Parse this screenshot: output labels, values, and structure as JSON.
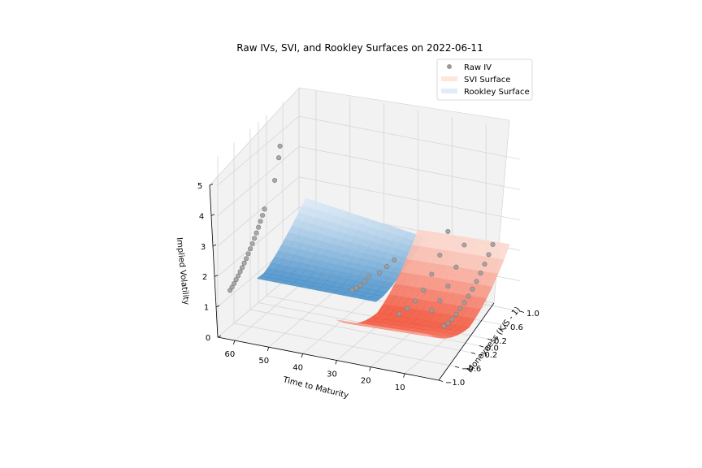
{
  "chart_data": {
    "type": "scatter",
    "title": "Raw IVs, SVI, and Rookley Surfaces on 2022-06-11",
    "xlabel": "Time to Maturity",
    "ylabel": "Moneyness (K/S - 1)",
    "zlabel": "Implied Volatility",
    "xlim": [
      0,
      65
    ],
    "ylim": [
      -1.0,
      1.0
    ],
    "zlim": [
      0,
      5
    ],
    "x_ticks": [
      "10",
      "20",
      "30",
      "40",
      "50",
      "60"
    ],
    "y_ticks": [
      "−1.0",
      "−0.6",
      "−0.2",
      "0.0",
      "0.2",
      "0.6",
      "1.0"
    ],
    "z_ticks": [
      "0",
      "1",
      "2",
      "3",
      "4",
      "5"
    ],
    "grid": true,
    "legend_position": "top-right",
    "legend": [
      "Raw IV",
      "SVI Surface",
      "Rookley Surface"
    ],
    "colors": {
      "raw_iv": "#808080",
      "svi_light": "#fde6dd",
      "svi_dark": "#f2553c",
      "rookley_light": "#e6f0fa",
      "rookley_dark": "#3c89c6",
      "pane": "#f2f2f2",
      "grid": "#d6d6d6"
    },
    "series": [
      {
        "name": "Raw IV",
        "kind": "scatter",
        "points": [
          [
            62,
            -0.95,
            1.55
          ],
          [
            62,
            -0.9,
            1.6
          ],
          [
            62,
            -0.85,
            1.66
          ],
          [
            62,
            -0.8,
            1.73
          ],
          [
            62,
            -0.75,
            1.8
          ],
          [
            62,
            -0.7,
            1.88
          ],
          [
            62,
            -0.65,
            1.96
          ],
          [
            62,
            -0.6,
            2.05
          ],
          [
            62,
            -0.55,
            2.14
          ],
          [
            62,
            -0.5,
            2.24
          ],
          [
            62,
            -0.45,
            2.35
          ],
          [
            62,
            -0.4,
            2.46
          ],
          [
            62,
            -0.35,
            2.58
          ],
          [
            62,
            -0.3,
            2.7
          ],
          [
            62,
            -0.25,
            2.83
          ],
          [
            62,
            -0.2,
            2.97
          ],
          [
            62,
            -0.15,
            3.11
          ],
          [
            62,
            -0.1,
            3.26
          ],
          [
            62,
            0.15,
            3.92
          ],
          [
            62,
            0.25,
            4.55
          ],
          [
            62,
            0.28,
            4.9
          ],
          [
            35,
            -0.2,
            1.3
          ],
          [
            35,
            -0.1,
            1.25
          ],
          [
            35,
            0.0,
            1.22
          ],
          [
            35,
            0.1,
            1.23
          ],
          [
            35,
            0.2,
            1.28
          ],
          [
            33,
            0.3,
            1.35
          ],
          [
            32,
            0.4,
            1.45
          ],
          [
            31,
            0.5,
            1.58
          ],
          [
            20,
            -0.3,
            0.95
          ],
          [
            20,
            -0.1,
            0.9
          ],
          [
            20,
            0.1,
            0.92
          ],
          [
            20,
            0.3,
            1.05
          ],
          [
            20,
            0.5,
            1.35
          ],
          [
            20,
            0.7,
            1.75
          ],
          [
            20,
            0.9,
            2.3
          ],
          [
            14,
            0.0,
            0.85
          ],
          [
            14,
            0.2,
            0.95
          ],
          [
            14,
            0.4,
            1.2
          ],
          [
            14,
            0.6,
            1.6
          ],
          [
            14,
            0.8,
            2.1
          ],
          [
            8,
            -0.2,
            0.7
          ],
          [
            8,
            -0.1,
            0.68
          ],
          [
            8,
            0.0,
            0.7
          ],
          [
            8,
            0.1,
            0.75
          ],
          [
            8,
            0.2,
            0.82
          ],
          [
            8,
            0.3,
            0.9
          ],
          [
            8,
            0.4,
            1.0
          ],
          [
            8,
            0.5,
            1.12
          ],
          [
            8,
            0.6,
            1.26
          ],
          [
            8,
            0.7,
            1.42
          ],
          [
            8,
            0.8,
            1.6
          ],
          [
            8,
            0.9,
            1.8
          ],
          [
            8,
            1.0,
            2.02
          ]
        ]
      },
      {
        "name": "SVI Surface",
        "kind": "surface"
      },
      {
        "name": "Rookley Surface",
        "kind": "surface"
      }
    ]
  }
}
